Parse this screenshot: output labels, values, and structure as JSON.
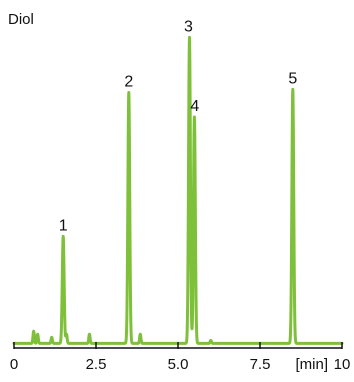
{
  "chart_data": {
    "type": "line",
    "title": "Diol",
    "xlabel": "[min]",
    "ylabel": "",
    "xlim": [
      0,
      10
    ],
    "ylim": [
      0,
      100
    ],
    "x_ticks": [
      {
        "value": 0,
        "label": "0"
      },
      {
        "value": 2.5,
        "label": "2.5"
      },
      {
        "value": 5,
        "label": "5.0"
      },
      {
        "value": 7.5,
        "label": "7.5"
      },
      {
        "value": 10,
        "label": "10"
      }
    ],
    "grid": false,
    "legend": "none",
    "line_color": "#7ec03a",
    "axis_color": "#111111",
    "baseline_level": 1.5,
    "peaks": [
      {
        "label": "1",
        "x": 1.5,
        "height": 35
      },
      {
        "label": "2",
        "x": 3.5,
        "height": 82
      },
      {
        "label": "3",
        "x": 5.35,
        "height": 100
      },
      {
        "label": "4",
        "x": 5.5,
        "height": 74
      },
      {
        "label": "5",
        "x": 8.5,
        "height": 83
      }
    ],
    "minor_peaks": [
      {
        "x": 0.6,
        "height": 4
      },
      {
        "x": 0.72,
        "height": 3
      },
      {
        "x": 1.15,
        "height": 2
      },
      {
        "x": 1.6,
        "height": 3
      },
      {
        "x": 2.3,
        "height": 3
      },
      {
        "x": 3.85,
        "height": 3
      },
      {
        "x": 6.0,
        "height": 1
      }
    ]
  }
}
